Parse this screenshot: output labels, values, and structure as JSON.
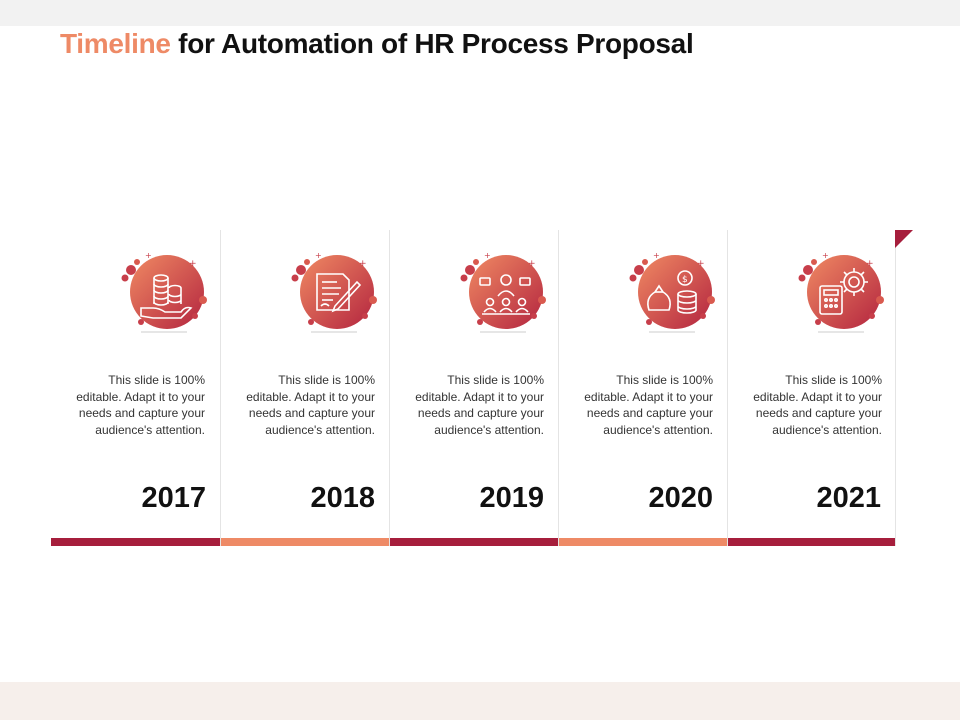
{
  "title": {
    "accent": "Timeline",
    "rest": "for Automation of HR Process Proposal"
  },
  "colors": {
    "dark": "#a61e3c",
    "light": "#ee8a66",
    "accent_text": "#ee8a66"
  },
  "items": [
    {
      "year": "2017",
      "text": "This slide is 100% editable. Adapt it to your needs and capture your audience's attention.",
      "icon": "coins-hand-icon",
      "bar_color": "#a61e3c"
    },
    {
      "year": "2018",
      "text": "This slide is 100% editable. Adapt it to your needs and capture your audience's attention.",
      "icon": "contract-signing-icon",
      "bar_color": "#ee8a66"
    },
    {
      "year": "2019",
      "text": "This slide is 100% editable. Adapt it to your needs and capture your audience's attention.",
      "icon": "meeting-people-icon",
      "bar_color": "#a61e3c"
    },
    {
      "year": "2020",
      "text": "This slide is 100% editable. Adapt it to your needs and capture your audience's attention.",
      "icon": "money-bag-icon",
      "bar_color": "#ee8a66"
    },
    {
      "year": "2021",
      "text": "This slide is 100% editable. Adapt it to your needs and capture your audience's attention.",
      "icon": "calculator-gear-icon",
      "bar_color": "#a61e3c"
    }
  ]
}
